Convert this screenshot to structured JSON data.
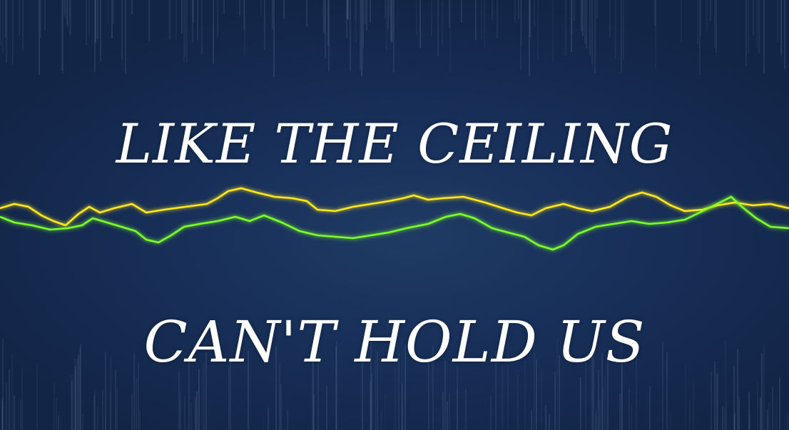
{
  "lyrics": {
    "line_1": "LIKE THE CEILING",
    "line_2": "CAN'T HOLD US"
  },
  "colors": {
    "background": "#17305a",
    "text": "#ffffff",
    "wave_yellow": "#ffe81a",
    "wave_green": "#7dff2a"
  }
}
